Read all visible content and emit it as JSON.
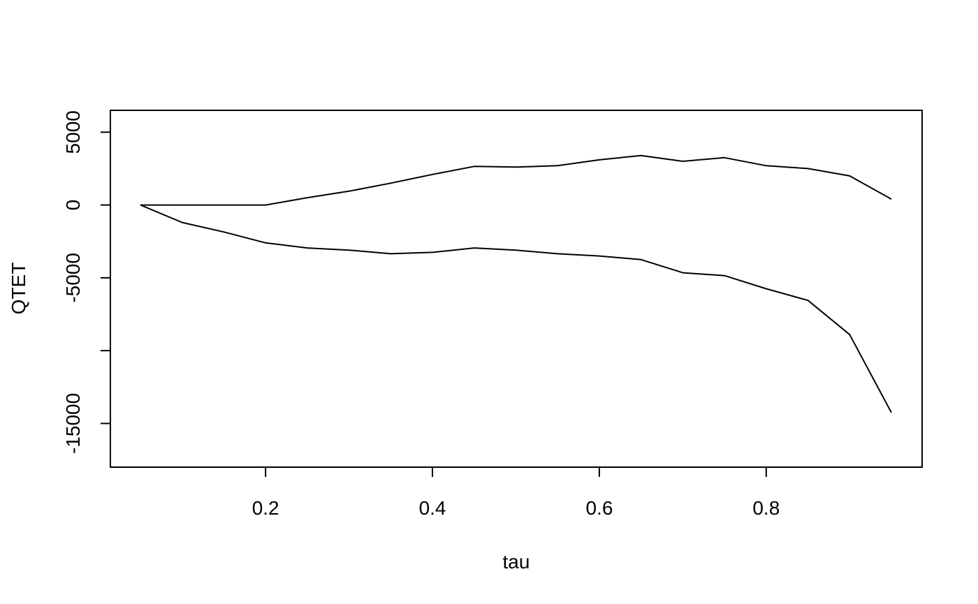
{
  "chart_data": {
    "type": "line",
    "title": "",
    "xlabel": "tau",
    "ylabel": "QTET",
    "xlim": [
      0.05,
      0.95
    ],
    "ylim": [
      -18000,
      6500
    ],
    "x_ticks": [
      0.2,
      0.4,
      0.6,
      0.8
    ],
    "x_tick_labels": [
      "0.2",
      "0.4",
      "0.6",
      "0.8"
    ],
    "y_ticks": [
      5000,
      0,
      -5000,
      -10000,
      -15000
    ],
    "y_tick_labels": [
      "5000",
      "0",
      "-5000",
      "",
      "-15000"
    ],
    "grid": false,
    "legend": "none",
    "x": [
      0.05,
      0.1,
      0.15,
      0.2,
      0.25,
      0.3,
      0.35,
      0.4,
      0.45,
      0.5,
      0.55,
      0.6,
      0.65,
      0.7,
      0.75,
      0.8,
      0.85,
      0.9,
      0.95
    ],
    "series": [
      {
        "values": [
          0,
          0,
          0,
          0,
          500,
          950,
          1500,
          2100,
          2650,
          2600,
          2700,
          3100,
          3400,
          3000,
          3250,
          2700,
          2500,
          2000,
          400
        ]
      },
      {
        "values": [
          0,
          -1200,
          -1850,
          -2600,
          -2950,
          -3100,
          -3350,
          -3250,
          -2950,
          -3100,
          -3350,
          -3500,
          -3750,
          -4650,
          -4850,
          -5750,
          -6550,
          -8900,
          -14250
        ]
      }
    ],
    "colors": {
      "line": "#000000",
      "axis": "#000000",
      "background": "#ffffff"
    }
  }
}
